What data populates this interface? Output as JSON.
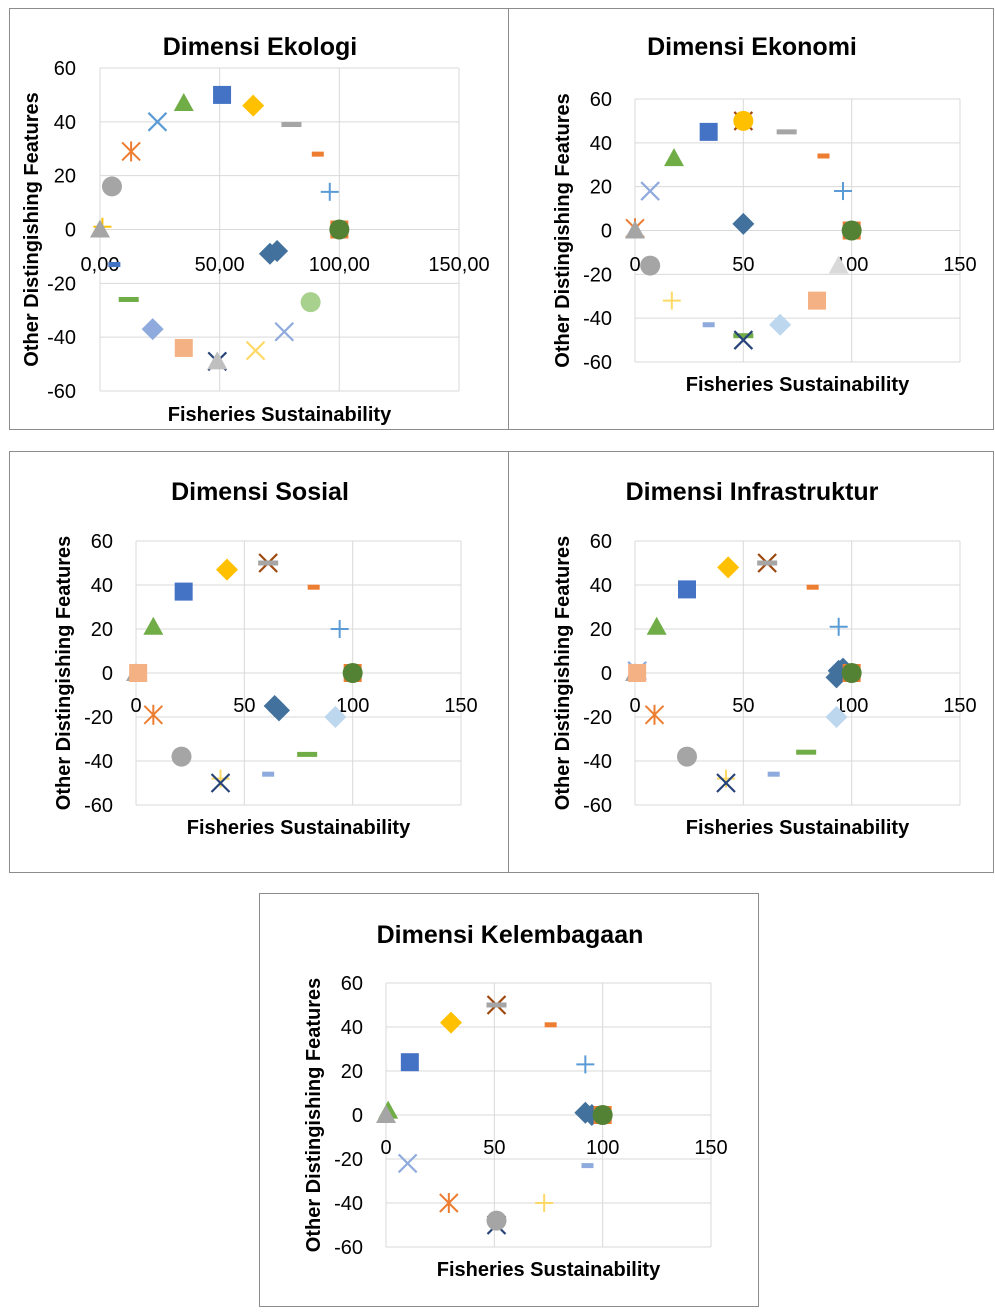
{
  "chart_data": [
    {
      "type": "scatter",
      "title": "Dimensi Ekologi",
      "xlabel": "Fisheries Sustainability",
      "ylabel": "Other Distingishing Features",
      "xlim": [
        0,
        150
      ],
      "ylim": [
        -60,
        60
      ],
      "xticks": [
        "0,00",
        "50,00",
        "100,00",
        "150,00"
      ],
      "yticks": [
        "60",
        "40",
        "20",
        "0",
        "-20",
        "-40",
        "-60"
      ],
      "grid": true,
      "legend": "none",
      "points": [
        {
          "x": 51,
          "y": 50,
          "marker": "square",
          "color": "#4472c4"
        },
        {
          "x": 64,
          "y": 46,
          "marker": "diamond",
          "color": "#ffc000"
        },
        {
          "x": 35,
          "y": 47,
          "marker": "triangle",
          "color": "#70ad47"
        },
        {
          "x": 24,
          "y": 40,
          "marker": "x",
          "color": "#5b9bd5"
        },
        {
          "x": 80,
          "y": 39,
          "marker": "dash",
          "color": "#a5a5a5"
        },
        {
          "x": 13,
          "y": 29,
          "marker": "star",
          "color": "#ed7d31"
        },
        {
          "x": 91,
          "y": 28,
          "marker": "dash",
          "color": "#ed7d31"
        },
        {
          "x": 5,
          "y": 16,
          "marker": "circle",
          "color": "#a5a5a5"
        },
        {
          "x": 96,
          "y": 14,
          "marker": "plus",
          "color": "#5b9bd5"
        },
        {
          "x": 1,
          "y": 1,
          "marker": "plus",
          "color": "#ffc000"
        },
        {
          "x": 0,
          "y": 0,
          "marker": "triangle",
          "color": "#a5a5a5"
        },
        {
          "x": 100,
          "y": 0,
          "marker": "square",
          "color": "#ed7d31"
        },
        {
          "x": 100,
          "y": 0,
          "marker": "circle",
          "color": "#548235"
        },
        {
          "x": 71,
          "y": -9,
          "marker": "diamond",
          "color": "#41719c"
        },
        {
          "x": 74,
          "y": -8,
          "marker": "diamond",
          "color": "#41719c"
        },
        {
          "x": 6,
          "y": -13,
          "marker": "dash",
          "color": "#4472c4"
        },
        {
          "x": 12,
          "y": -26,
          "marker": "dash",
          "color": "#70ad47"
        },
        {
          "x": 88,
          "y": -27,
          "marker": "circle",
          "color": "#a9d18e"
        },
        {
          "x": 22,
          "y": -37,
          "marker": "diamond",
          "color": "#8faadc"
        },
        {
          "x": 77,
          "y": -38,
          "marker": "x",
          "color": "#8faadc"
        },
        {
          "x": 35,
          "y": -44,
          "marker": "square",
          "color": "#f4b183"
        },
        {
          "x": 65,
          "y": -45,
          "marker": "x",
          "color": "#ffd966"
        },
        {
          "x": 49,
          "y": -49,
          "marker": "x",
          "color": "#264478"
        },
        {
          "x": 49,
          "y": -49,
          "marker": "triangle",
          "color": "#bfbfbf"
        }
      ]
    },
    {
      "type": "scatter",
      "title": "Dimensi Ekonomi",
      "xlabel": "Fisheries Sustainability",
      "ylabel": "Other Distingishing Features",
      "xlim": [
        0,
        150
      ],
      "ylim": [
        -60,
        60
      ],
      "xticks": [
        "0",
        "50",
        "100",
        "150"
      ],
      "yticks": [
        "60",
        "40",
        "20",
        "0",
        "-20",
        "-40",
        "-60"
      ],
      "grid": true,
      "legend": "none",
      "points": [
        {
          "x": 50,
          "y": 50,
          "marker": "x",
          "color": "#9e480e"
        },
        {
          "x": 50,
          "y": 50,
          "marker": "circle",
          "color": "#ffc000"
        },
        {
          "x": 34,
          "y": 45,
          "marker": "square",
          "color": "#4472c4"
        },
        {
          "x": 70,
          "y": 45,
          "marker": "dash",
          "color": "#a5a5a5"
        },
        {
          "x": 18,
          "y": 33,
          "marker": "triangle",
          "color": "#70ad47"
        },
        {
          "x": 87,
          "y": 34,
          "marker": "dash",
          "color": "#ed7d31"
        },
        {
          "x": 7,
          "y": 18,
          "marker": "x",
          "color": "#8faadc"
        },
        {
          "x": 96,
          "y": 18,
          "marker": "plus",
          "color": "#5b9bd5"
        },
        {
          "x": 0,
          "y": 1,
          "marker": "star",
          "color": "#ed7d31"
        },
        {
          "x": 0,
          "y": 0,
          "marker": "triangle",
          "color": "#a5a5a5"
        },
        {
          "x": 50,
          "y": 3,
          "marker": "diamond",
          "color": "#41719c"
        },
        {
          "x": 100,
          "y": 0,
          "marker": "square",
          "color": "#ed7d31"
        },
        {
          "x": 100,
          "y": 0,
          "marker": "circle",
          "color": "#548235"
        },
        {
          "x": 7,
          "y": -16,
          "marker": "circle",
          "color": "#a5a5a5"
        },
        {
          "x": 94,
          "y": -16,
          "marker": "triangle",
          "color": "#d9d9d9"
        },
        {
          "x": 17,
          "y": -32,
          "marker": "plus",
          "color": "#ffd966"
        },
        {
          "x": 84,
          "y": -32,
          "marker": "square",
          "color": "#f4b183"
        },
        {
          "x": 34,
          "y": -43,
          "marker": "dash",
          "color": "#8faadc"
        },
        {
          "x": 67,
          "y": -43,
          "marker": "diamond",
          "color": "#bdd7ee"
        },
        {
          "x": 50,
          "y": -48,
          "marker": "dash",
          "color": "#70ad47"
        },
        {
          "x": 50,
          "y": -50,
          "marker": "x",
          "color": "#264478"
        }
      ]
    },
    {
      "type": "scatter",
      "title": "Dimensi Sosial",
      "xlabel": "Fisheries Sustainability",
      "ylabel": "Other Distingishing Features",
      "xlim": [
        0,
        150
      ],
      "ylim": [
        -60,
        60
      ],
      "xticks": [
        "0",
        "50",
        "100",
        "150"
      ],
      "yticks": [
        "60",
        "40",
        "20",
        "0",
        "-20",
        "-40",
        "-60"
      ],
      "grid": true,
      "legend": "none",
      "points": [
        {
          "x": 61,
          "y": 50,
          "marker": "x",
          "color": "#9e480e"
        },
        {
          "x": 61,
          "y": 50,
          "marker": "dash",
          "color": "#a5a5a5"
        },
        {
          "x": 42,
          "y": 47,
          "marker": "diamond",
          "color": "#ffc000"
        },
        {
          "x": 82,
          "y": 39,
          "marker": "dash",
          "color": "#ed7d31"
        },
        {
          "x": 22,
          "y": 37,
          "marker": "square",
          "color": "#4472c4"
        },
        {
          "x": 8,
          "y": 21,
          "marker": "triangle",
          "color": "#70ad47"
        },
        {
          "x": 94,
          "y": 20,
          "marker": "plus",
          "color": "#5b9bd5"
        },
        {
          "x": 0,
          "y": 0,
          "marker": "triangle",
          "color": "#a5a5a5"
        },
        {
          "x": 1,
          "y": 0,
          "marker": "square",
          "color": "#f4b183"
        },
        {
          "x": 100,
          "y": 0,
          "marker": "square",
          "color": "#ed7d31"
        },
        {
          "x": 100,
          "y": 0,
          "marker": "circle",
          "color": "#548235"
        },
        {
          "x": 64,
          "y": -15,
          "marker": "diamond",
          "color": "#41719c"
        },
        {
          "x": 66,
          "y": -17,
          "marker": "diamond",
          "color": "#41719c"
        },
        {
          "x": 8,
          "y": -19,
          "marker": "star",
          "color": "#ed7d31"
        },
        {
          "x": 92,
          "y": -20,
          "marker": "diamond",
          "color": "#bdd7ee"
        },
        {
          "x": 79,
          "y": -37,
          "marker": "dash",
          "color": "#70ad47"
        },
        {
          "x": 21,
          "y": -38,
          "marker": "circle",
          "color": "#a5a5a5"
        },
        {
          "x": 61,
          "y": -46,
          "marker": "dash",
          "color": "#8faadc"
        },
        {
          "x": 39,
          "y": -48,
          "marker": "plus",
          "color": "#ffd966"
        },
        {
          "x": 39,
          "y": -50,
          "marker": "x",
          "color": "#264478"
        }
      ]
    },
    {
      "type": "scatter",
      "title": "Dimensi Infrastruktur",
      "xlabel": "Fisheries Sustainability",
      "ylabel": "Other Distingishing Features",
      "xlim": [
        0,
        150
      ],
      "ylim": [
        -60,
        60
      ],
      "xticks": [
        "0",
        "50",
        "100",
        "150"
      ],
      "yticks": [
        "60",
        "40",
        "20",
        "0",
        "-20",
        "-40",
        "-60"
      ],
      "grid": true,
      "legend": "none",
      "points": [
        {
          "x": 61,
          "y": 50,
          "marker": "x",
          "color": "#9e480e"
        },
        {
          "x": 61,
          "y": 50,
          "marker": "dash",
          "color": "#a5a5a5"
        },
        {
          "x": 43,
          "y": 48,
          "marker": "diamond",
          "color": "#ffc000"
        },
        {
          "x": 82,
          "y": 39,
          "marker": "dash",
          "color": "#ed7d31"
        },
        {
          "x": 24,
          "y": 38,
          "marker": "square",
          "color": "#4472c4"
        },
        {
          "x": 10,
          "y": 21,
          "marker": "triangle",
          "color": "#70ad47"
        },
        {
          "x": 94,
          "y": 21,
          "marker": "plus",
          "color": "#5b9bd5"
        },
        {
          "x": 1,
          "y": 1,
          "marker": "x",
          "color": "#8faadc"
        },
        {
          "x": 0,
          "y": 0,
          "marker": "triangle",
          "color": "#a5a5a5"
        },
        {
          "x": 1,
          "y": 0,
          "marker": "square",
          "color": "#f4b183"
        },
        {
          "x": 94,
          "y": 1,
          "marker": "diamond",
          "color": "#41719c"
        },
        {
          "x": 96,
          "y": 2,
          "marker": "diamond",
          "color": "#41719c"
        },
        {
          "x": 93,
          "y": -2,
          "marker": "diamond",
          "color": "#41719c"
        },
        {
          "x": 100,
          "y": 0,
          "marker": "square",
          "color": "#ed7d31"
        },
        {
          "x": 100,
          "y": 0,
          "marker": "circle",
          "color": "#548235"
        },
        {
          "x": 9,
          "y": -19,
          "marker": "star",
          "color": "#ed7d31"
        },
        {
          "x": 93,
          "y": -20,
          "marker": "diamond",
          "color": "#bdd7ee"
        },
        {
          "x": 79,
          "y": -36,
          "marker": "dash",
          "color": "#70ad47"
        },
        {
          "x": 24,
          "y": -38,
          "marker": "circle",
          "color": "#a5a5a5"
        },
        {
          "x": 64,
          "y": -46,
          "marker": "dash",
          "color": "#8faadc"
        },
        {
          "x": 42,
          "y": -48,
          "marker": "plus",
          "color": "#ffd966"
        },
        {
          "x": 42,
          "y": -50,
          "marker": "x",
          "color": "#264478"
        }
      ]
    },
    {
      "type": "scatter",
      "title": "Dimensi Kelembagaan",
      "xlabel": "Fisheries Sustainability",
      "ylabel": "Other Distingishing Features",
      "xlim": [
        0,
        150
      ],
      "ylim": [
        -60,
        60
      ],
      "xticks": [
        "0",
        "50",
        "100",
        "150"
      ],
      "yticks": [
        "60",
        "40",
        "20",
        "0",
        "-20",
        "-40",
        "-60"
      ],
      "grid": true,
      "legend": "none",
      "points": [
        {
          "x": 51,
          "y": 50,
          "marker": "x",
          "color": "#9e480e"
        },
        {
          "x": 51,
          "y": 50,
          "marker": "dash",
          "color": "#a5a5a5"
        },
        {
          "x": 30,
          "y": 42,
          "marker": "diamond",
          "color": "#ffc000"
        },
        {
          "x": 76,
          "y": 41,
          "marker": "dash",
          "color": "#ed7d31"
        },
        {
          "x": 11,
          "y": 24,
          "marker": "square",
          "color": "#4472c4"
        },
        {
          "x": 92,
          "y": 23,
          "marker": "plus",
          "color": "#5b9bd5"
        },
        {
          "x": 1,
          "y": 2,
          "marker": "triangle",
          "color": "#70ad47"
        },
        {
          "x": 0,
          "y": 0,
          "marker": "triangle",
          "color": "#a5a5a5"
        },
        {
          "x": 92,
          "y": 1,
          "marker": "diamond",
          "color": "#41719c"
        },
        {
          "x": 95,
          "y": 0,
          "marker": "diamond",
          "color": "#41719c"
        },
        {
          "x": 100,
          "y": 0,
          "marker": "square",
          "color": "#ed7d31"
        },
        {
          "x": 100,
          "y": 0,
          "marker": "circle",
          "color": "#548235"
        },
        {
          "x": 10,
          "y": -22,
          "marker": "x",
          "color": "#8faadc"
        },
        {
          "x": 93,
          "y": -23,
          "marker": "dash",
          "color": "#8faadc"
        },
        {
          "x": 29,
          "y": -40,
          "marker": "star",
          "color": "#ed7d31"
        },
        {
          "x": 73,
          "y": -40,
          "marker": "plus",
          "color": "#ffd966"
        },
        {
          "x": 51,
          "y": -50,
          "marker": "x",
          "color": "#264478"
        },
        {
          "x": 51,
          "y": -48,
          "marker": "circle",
          "color": "#a5a5a5"
        }
      ]
    }
  ]
}
